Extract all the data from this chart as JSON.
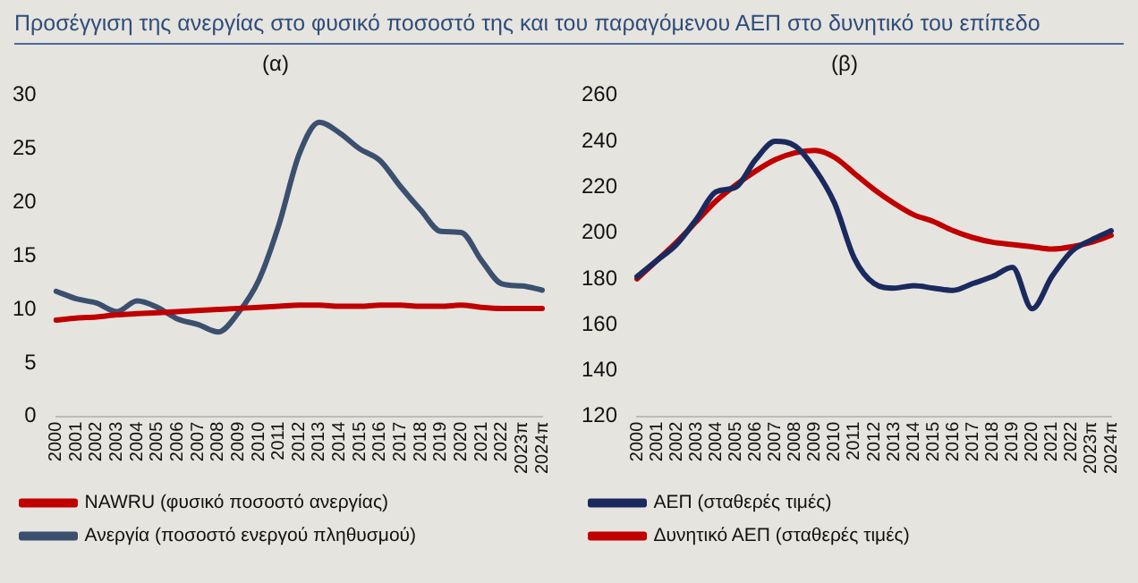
{
  "chart_data": [
    {
      "type": "line",
      "title": "Προσέγγιση της ανεργίας στο φυσικό ποσοστό της και του παραγόμενου ΑΕΠ στο δυνητικό του επίπεδο",
      "subtitle": "(α)",
      "categories": [
        "2000",
        "2001",
        "2002",
        "2003",
        "2004",
        "2005",
        "2006",
        "2007",
        "2008",
        "2009",
        "2010",
        "2011",
        "2012",
        "2013",
        "2014",
        "2015",
        "2016",
        "2017",
        "2018",
        "2019",
        "2020",
        "2021",
        "2022",
        "2023π",
        "2024π"
      ],
      "series": [
        {
          "name": "NAWRU (φυσικό ποσοστό ανεργίας)",
          "color": "#c00000",
          "values": [
            9.0,
            9.2,
            9.3,
            9.5,
            9.6,
            9.7,
            9.8,
            9.9,
            10.0,
            10.1,
            10.2,
            10.3,
            10.4,
            10.4,
            10.3,
            10.3,
            10.4,
            10.4,
            10.3,
            10.3,
            10.4,
            10.2,
            10.1,
            10.1,
            10.1
          ]
        },
        {
          "name": "Ανεργία (ποσοστό ενεργού πληθυσμού)",
          "color": "#3b4f6e",
          "values": [
            11.7,
            11.0,
            10.6,
            9.8,
            10.8,
            10.2,
            9.1,
            8.6,
            7.9,
            9.7,
            12.7,
            17.9,
            24.5,
            27.5,
            26.5,
            25.0,
            23.9,
            21.5,
            19.3,
            17.3,
            17.2,
            14.6,
            12.4,
            12.2,
            11.8
          ]
        }
      ],
      "ylim": [
        0,
        30
      ],
      "yticks": [
        0,
        5,
        10,
        15,
        20,
        25,
        30
      ],
      "grid": false,
      "legend": "bottom",
      "marker": "none",
      "line_style": "solid"
    },
    {
      "type": "line",
      "title": "(β)",
      "categories": [
        "2000",
        "2001",
        "2002",
        "2003",
        "2004",
        "2005",
        "2006",
        "2007",
        "2008",
        "2009",
        "2010",
        "2011",
        "2012",
        "2013",
        "2014",
        "2015",
        "2016",
        "2017",
        "2018",
        "2019",
        "2020",
        "2021",
        "2022",
        "2023π",
        "2024π"
      ],
      "series": [
        {
          "name": "ΑΕΠ (σταθερές τιμές)",
          "color": "#1a2a5e",
          "values": [
            181,
            188,
            195,
            206,
            218,
            220,
            232,
            240,
            238,
            228,
            213,
            189,
            178,
            176,
            177,
            176,
            175,
            178,
            181,
            185,
            167,
            181,
            192,
            197,
            201
          ]
        },
        {
          "name": "Δυνητικό ΑΕΠ (σταθερές τιμές)",
          "color": "#c00000",
          "values": [
            180,
            188,
            196,
            205,
            214,
            221,
            227,
            232,
            235,
            236,
            233,
            226,
            219,
            213,
            208,
            205,
            201,
            198,
            196,
            195,
            194,
            193,
            194,
            196,
            199
          ]
        }
      ],
      "ylim": [
        120,
        260
      ],
      "yticks": [
        120,
        140,
        160,
        180,
        200,
        220,
        240,
        260
      ],
      "grid": false,
      "legend": "bottom",
      "marker": "none",
      "line_style": "solid"
    }
  ]
}
